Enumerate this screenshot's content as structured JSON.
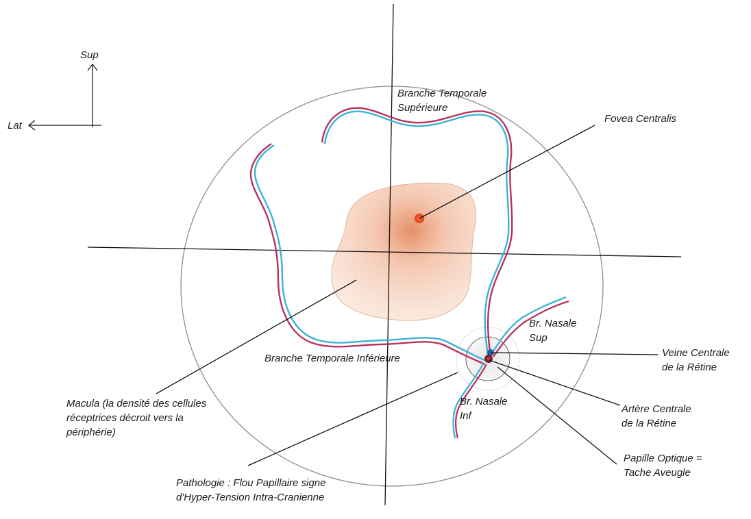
{
  "orientation": {
    "sup": "Sup",
    "lat": "Lat"
  },
  "labels": {
    "branche_temporale_superieure_l1": "Branche Temporale",
    "branche_temporale_superieure_l2": "Supérieure",
    "fovea_centralis": "Fovea Centralis",
    "br_nasale_sup_l1": "Br. Nasale",
    "br_nasale_sup_l2": "Sup",
    "veine_centrale_l1": "Veine Centrale",
    "veine_centrale_l2": "de la Rétine",
    "branche_temporale_inferieure": "Branche Temporale Inférieure",
    "br_nasale_inf_l1": "Br. Nasale",
    "br_nasale_inf_l2": "Inf",
    "artere_centrale_l1": "Artère Centrale",
    "artere_centrale_l2": "de la Rétine",
    "macula_l1": "Macula (la densité des cellules",
    "macula_l2": "réceptrices décroit vers la",
    "macula_l3": "périphérie)",
    "papille_l1": "Papille Optique =",
    "papille_l2": "Tache Aveugle",
    "pathologie_l1": "Pathologie : Flou Papillaire signe",
    "pathologie_l2": "d'Hyper-Tension Intra-Cranienne"
  },
  "colors": {
    "artery": "#b8325e",
    "vein": "#3ab3d6",
    "macula": "#e8a57e",
    "fovea": "#e8481c",
    "line": "#111111",
    "fundus_outline": "#8c8c8c"
  }
}
